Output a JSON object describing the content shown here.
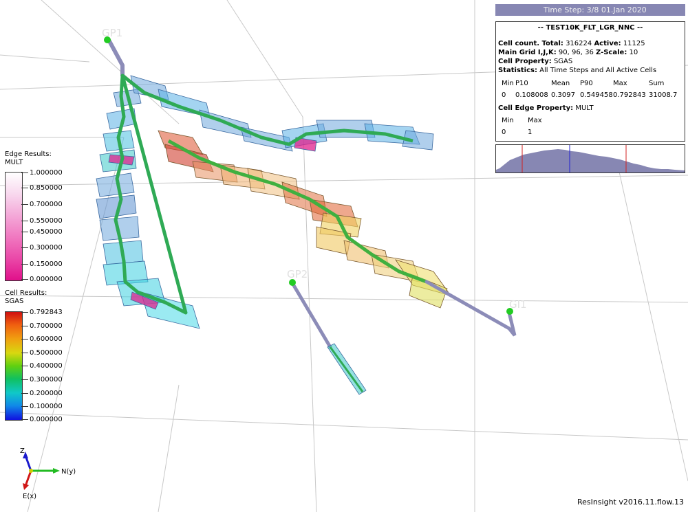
{
  "time_step": "Time Step: 3/8 01.Jan 2020",
  "info": {
    "title": "-- TEST10K_FLT_LGR_NNC --",
    "cell_count_label": "Cell count. Total:",
    "cell_count_total": "316224",
    "active_label": "Active:",
    "active_value": "11125",
    "main_grid_label": "Main Grid I,J,K:",
    "main_grid_value": "90, 96, 36",
    "zscale_label": "Z-Scale:",
    "zscale_value": "10",
    "cell_property_label": "Cell Property:",
    "cell_property_value": "SGAS",
    "statistics_label": "Statistics:",
    "statistics_value": "All Time Steps and All Active Cells",
    "stats_headers": [
      "Min",
      "P10",
      "Mean",
      "P90",
      "Max",
      "Sum"
    ],
    "stats_values": [
      "0",
      "0.108008",
      "0.3097",
      "0.549458",
      "0.792843",
      "31008.7"
    ],
    "edge_property_label": "Cell Edge Property:",
    "edge_property_value": "MULT",
    "edge_headers": [
      "Min",
      "Max"
    ],
    "edge_values": [
      "0",
      "1"
    ]
  },
  "edge_legend": {
    "title_line1": "Edge Results:",
    "title_line2": "MULT",
    "labels": [
      "1.000000",
      "0.850000",
      "0.700000",
      "0.550000",
      "0.450000",
      "0.300000",
      "0.150000",
      "0.000000"
    ]
  },
  "cell_legend": {
    "title_line1": "Cell Results:",
    "title_line2": "SGAS",
    "labels": [
      "0.792843",
      "0.700000",
      "0.600000",
      "0.500000",
      "0.400000",
      "0.300000",
      "0.200000",
      "0.100000",
      "0.000000"
    ]
  },
  "wells": {
    "gp1": "GP1",
    "gp2": "GP2",
    "gi1": "GI1"
  },
  "axis": {
    "z": "Z",
    "y": "N(y)",
    "x": "E(x)"
  },
  "version": "ResInsight v2016.11.flow.13",
  "colors": {
    "panel_header": "#8787b3",
    "well_pipe": "#8c8cb8",
    "well_head": "#22cc22"
  }
}
